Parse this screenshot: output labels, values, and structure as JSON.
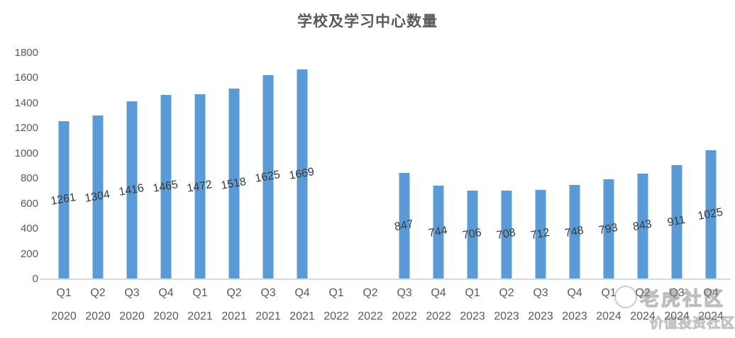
{
  "title": "学校及学习中心数量",
  "colors": {
    "bar": "#5b9bd5",
    "title": "#595959",
    "axis_label": "#595959",
    "data_label": "#3a3a3a",
    "baseline": "#d9d9d9"
  },
  "watermark": {
    "logo": "tiger-circle-logo",
    "line1": "老虎社区",
    "line2": "价值投资社区"
  },
  "chart_data": {
    "type": "bar",
    "title": "学校及学习中心数量",
    "categories": [
      {
        "quarter": "Q1",
        "year": "2020"
      },
      {
        "quarter": "Q2",
        "year": "2020"
      },
      {
        "quarter": "Q3",
        "year": "2020"
      },
      {
        "quarter": "Q4",
        "year": "2020"
      },
      {
        "quarter": "Q1",
        "year": "2021"
      },
      {
        "quarter": "Q2",
        "year": "2021"
      },
      {
        "quarter": "Q3",
        "year": "2021"
      },
      {
        "quarter": "Q4",
        "year": "2021"
      },
      {
        "quarter": "Q1",
        "year": "2022"
      },
      {
        "quarter": "Q2",
        "year": "2022"
      },
      {
        "quarter": "Q3",
        "year": "2022"
      },
      {
        "quarter": "Q4",
        "year": "2022"
      },
      {
        "quarter": "Q1",
        "year": "2023"
      },
      {
        "quarter": "Q2",
        "year": "2023"
      },
      {
        "quarter": "Q3",
        "year": "2023"
      },
      {
        "quarter": "Q4",
        "year": "2023"
      },
      {
        "quarter": "Q1",
        "year": "2024"
      },
      {
        "quarter": "Q2",
        "year": "2024"
      },
      {
        "quarter": "Q3",
        "year": "2024"
      },
      {
        "quarter": "Q4",
        "year": "2024"
      }
    ],
    "values": [
      1261,
      1304,
      1416,
      1465,
      1472,
      1518,
      1625,
      1669,
      null,
      null,
      847,
      744,
      706,
      708,
      712,
      748,
      793,
      843,
      911,
      1025
    ],
    "xlabel": "",
    "ylabel": "",
    "ylim": [
      0,
      1800
    ],
    "yticks": [
      0,
      200,
      400,
      600,
      800,
      1000,
      1200,
      1400,
      1600,
      1800
    ],
    "grid": false,
    "legend": false,
    "data_labels": "center-of-bar, rotated slightly counterclockwise"
  }
}
